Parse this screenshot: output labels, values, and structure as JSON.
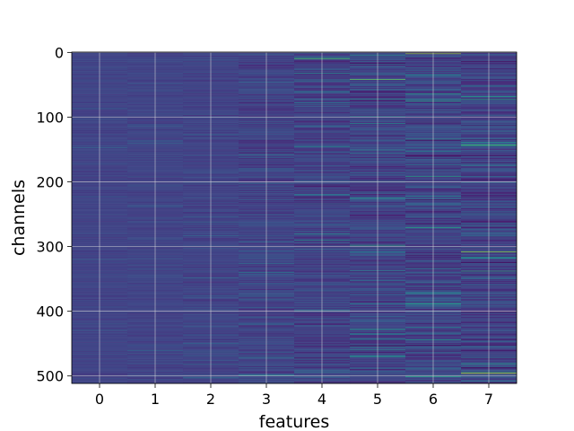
{
  "chart_data": {
    "type": "heatmap",
    "title": "",
    "xlabel": "features",
    "ylabel": "channels",
    "x_ticks": [
      "0",
      "1",
      "2",
      "3",
      "4",
      "5",
      "6",
      "7"
    ],
    "y_ticks": [
      "0",
      "100",
      "200",
      "300",
      "400",
      "500"
    ],
    "n_columns": 8,
    "n_rows": 512,
    "xlim": [
      -0.5,
      7.5
    ],
    "ylim": [
      511.5,
      -0.5
    ],
    "y_axis_inverted": true,
    "grid": true,
    "colormap": "viridis",
    "column_variation": [
      0.05,
      0.06,
      0.08,
      0.13,
      0.16,
      0.2,
      0.2,
      0.21
    ],
    "notable_cells": [
      {
        "column": 4,
        "row": 10,
        "value": 0.8
      },
      {
        "column": 5,
        "row": 42,
        "value": 0.85
      },
      {
        "column": 5,
        "row": 298,
        "value": 0.75
      },
      {
        "column": 6,
        "row": 2,
        "value": 0.9
      },
      {
        "column": 7,
        "row": 308,
        "value": 0.9
      },
      {
        "column": 7,
        "row": 496,
        "value": 0.95
      },
      {
        "column": 7,
        "row": 143,
        "value": 0.8
      },
      {
        "column": 6,
        "row": 75,
        "value": 0.75
      }
    ]
  },
  "colors": {
    "background": "#ffffff",
    "grid": "#d9d9d9",
    "axis": "#000000"
  }
}
